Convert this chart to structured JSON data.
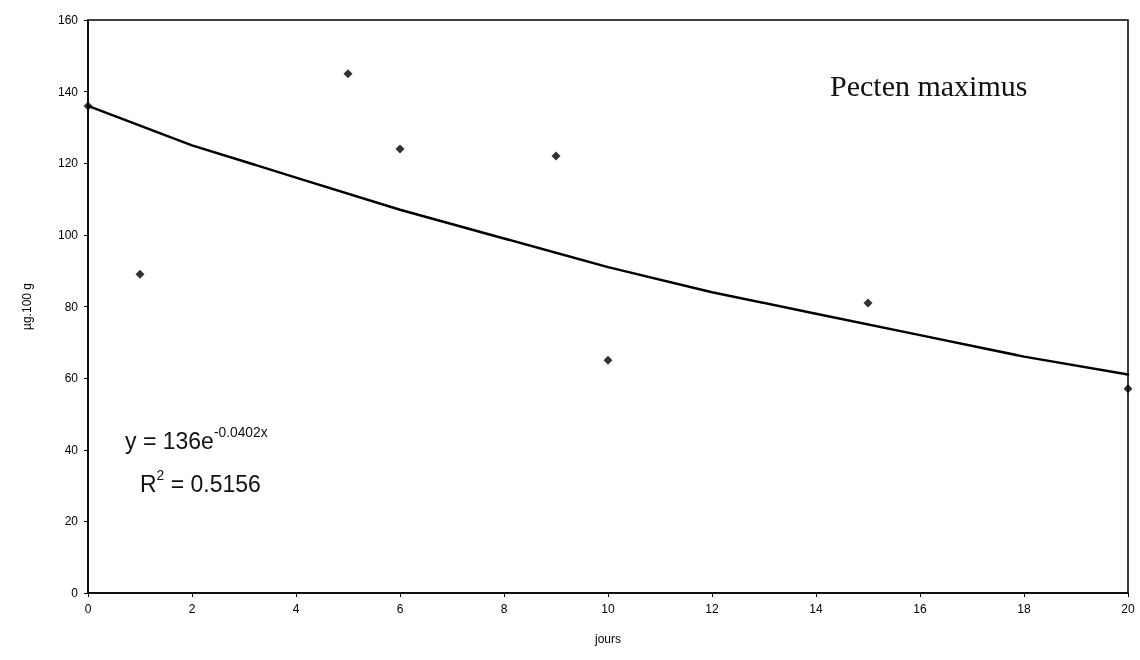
{
  "chart_data": {
    "type": "scatter",
    "xlabel": "jours",
    "ylabel": "µg.100 g",
    "annotations": [
      "Pecten maximus",
      "y = 136e$^{-0.0402x}$",
      "R$^{2}$ = 0.5156"
    ],
    "x": [
      0,
      1,
      5,
      6,
      9,
      10,
      15,
      20
    ],
    "series": [
      {
        "color": "#000000",
        "marker": "diamond",
        "values": [
          136,
          89,
          145,
          124,
          122,
          65,
          81,
          57
        ]
      },
      {
        "type": "line",
        "color": "#000000",
        "marker": "none",
        "line_style": "solid",
        "x": [
          0,
          2,
          4,
          6,
          8,
          10,
          12,
          14,
          16,
          18,
          20
        ],
        "values": [
          136,
          125,
          116,
          107,
          99,
          91,
          84,
          78,
          72,
          66,
          61
        ]
      }
    ],
    "xlim": [
      0,
      20
    ],
    "xticks": [
      0,
      2,
      4,
      6,
      8,
      10,
      12,
      14,
      16,
      18,
      20
    ],
    "ylim": [
      0,
      160
    ],
    "yticks": [
      0,
      20,
      40,
      60,
      80,
      100,
      120,
      140,
      160
    ],
    "grid": false
  }
}
